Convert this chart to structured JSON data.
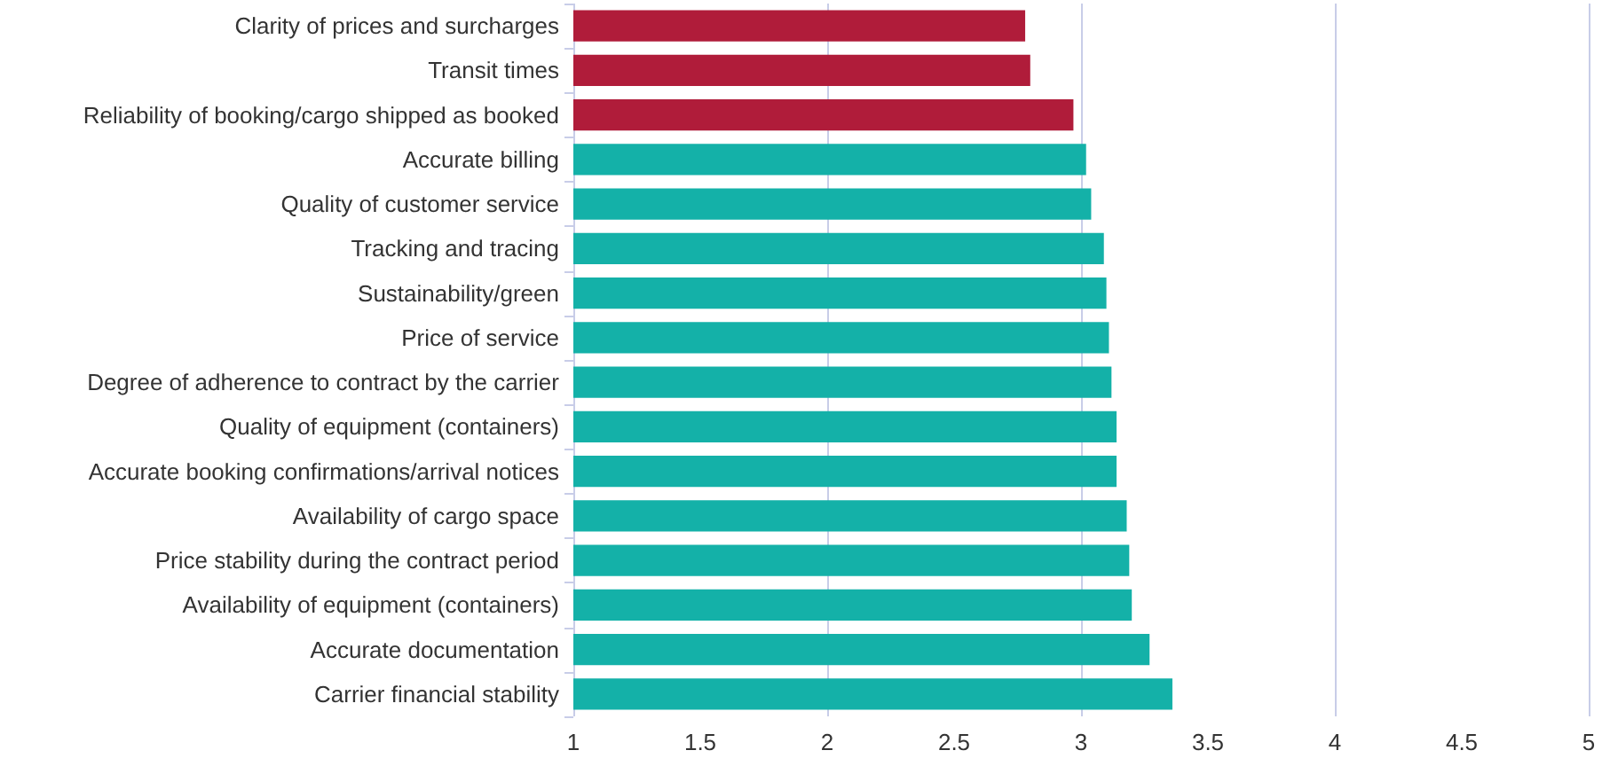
{
  "chart_data": {
    "type": "bar",
    "orientation": "horizontal",
    "categories": [
      "Clarity of prices and surcharges",
      "Transit times",
      "Reliability of booking/cargo shipped as booked",
      "Accurate billing",
      "Quality of customer service",
      "Tracking and tracing",
      "Sustainability/green",
      "Price of service",
      "Degree of adherence to contract by the carrier",
      "Quality of equipment (containers)",
      "Accurate booking confirmations/arrival notices",
      "Availability of cargo space",
      "Price stability during the contract period",
      "Availability of equipment (containers)",
      "Accurate documentation",
      "Carrier financial stability"
    ],
    "values": [
      2.78,
      2.8,
      2.97,
      3.02,
      3.04,
      3.09,
      3.1,
      3.11,
      3.12,
      3.14,
      3.14,
      3.18,
      3.19,
      3.2,
      3.27,
      3.36
    ],
    "colors": [
      "#b01c3a",
      "#b01c3a",
      "#b01c3a",
      "#14b1a8",
      "#14b1a8",
      "#14b1a8",
      "#14b1a8",
      "#14b1a8",
      "#14b1a8",
      "#14b1a8",
      "#14b1a8",
      "#14b1a8",
      "#14b1a8",
      "#14b1a8",
      "#14b1a8",
      "#14b1a8"
    ],
    "xlim": [
      1,
      5
    ],
    "xticks": [
      1,
      1.5,
      2,
      2.5,
      3,
      3.5,
      4,
      4.5,
      5
    ],
    "grid": "x"
  }
}
